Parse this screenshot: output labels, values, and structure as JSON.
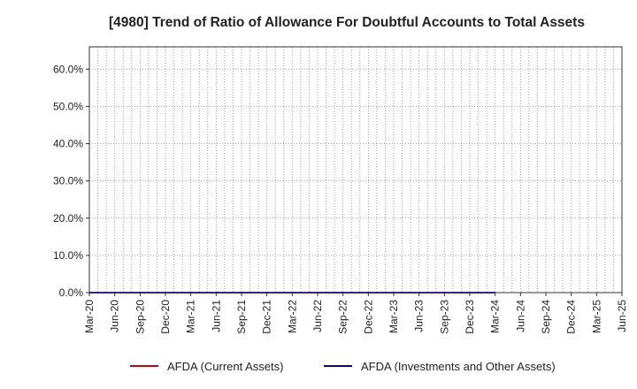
{
  "chart_data": {
    "type": "line",
    "title": "[4980]  Trend of Ratio of Allowance For Doubtful Accounts to Total Assets",
    "xlabel": "",
    "ylabel": "",
    "ylim": [
      0,
      66
    ],
    "yticks": [
      "0.0%",
      "10.0%",
      "20.0%",
      "30.0%",
      "40.0%",
      "50.0%",
      "60.0%"
    ],
    "ytick_values": [
      0,
      10,
      20,
      30,
      40,
      50,
      60
    ],
    "x_tick_labels": [
      "Mar-20",
      "Jun-20",
      "Sep-20",
      "Dec-20",
      "Mar-21",
      "Jun-21",
      "Sep-21",
      "Dec-21",
      "Mar-22",
      "Jun-22",
      "Sep-22",
      "Dec-22",
      "Mar-23",
      "Jun-23",
      "Sep-23",
      "Dec-23",
      "Mar-24",
      "Jun-24",
      "Sep-24",
      "Dec-24",
      "Mar-25",
      "Jun-25"
    ],
    "grid": true,
    "legend_position": "bottom",
    "series": [
      {
        "name": "AFDA (Current Assets)",
        "color": "#cc0000",
        "x": [
          "Mar-20",
          "Jun-20",
          "Sep-20",
          "Dec-20",
          "Mar-21",
          "Jun-21",
          "Sep-21",
          "Dec-21",
          "Mar-22",
          "Jun-22",
          "Sep-22",
          "Dec-22",
          "Mar-23",
          "Jun-23",
          "Sep-23",
          "Dec-23",
          "Mar-24"
        ],
        "values": [
          0,
          0,
          0,
          0,
          0,
          0,
          0,
          0,
          0,
          0,
          0,
          0,
          0,
          0,
          0,
          0,
          0
        ]
      },
      {
        "name": "AFDA (Investments and Other Assets)",
        "color": "#0000aa",
        "x": [
          "Mar-20",
          "Jun-20",
          "Sep-20",
          "Dec-20",
          "Mar-21",
          "Jun-21",
          "Sep-21",
          "Dec-21",
          "Mar-22",
          "Jun-22",
          "Sep-22",
          "Dec-22",
          "Mar-23",
          "Jun-23",
          "Sep-23",
          "Dec-23",
          "Mar-24"
        ],
        "values": [
          0,
          0,
          0,
          0,
          0,
          0,
          0,
          0,
          0,
          0,
          0,
          0,
          0,
          0,
          0,
          0,
          0
        ]
      }
    ]
  }
}
